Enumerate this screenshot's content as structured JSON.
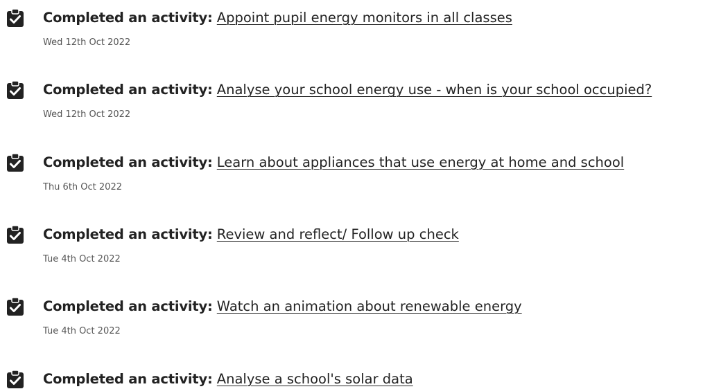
{
  "items": [
    {
      "label": "Completed an activity:",
      "link": "Appoint pupil energy monitors in all classes",
      "date": "Wed 12th Oct 2022"
    },
    {
      "label": "Completed an activity:",
      "link": "Analyse your school energy use - when is your school occupied?",
      "date": "Wed 12th Oct 2022"
    },
    {
      "label": "Completed an activity:",
      "link": "Learn about appliances that use energy at home and school",
      "date": "Thu 6th Oct 2022"
    },
    {
      "label": "Completed an activity:",
      "link": "Review and reflect/ Follow up check",
      "date": "Tue 4th Oct 2022"
    },
    {
      "label": "Completed an activity:",
      "link": "Watch an animation about renewable energy",
      "date": "Tue 4th Oct 2022"
    },
    {
      "label": "Completed an activity:",
      "link": "Analyse a school's solar data"
    }
  ]
}
